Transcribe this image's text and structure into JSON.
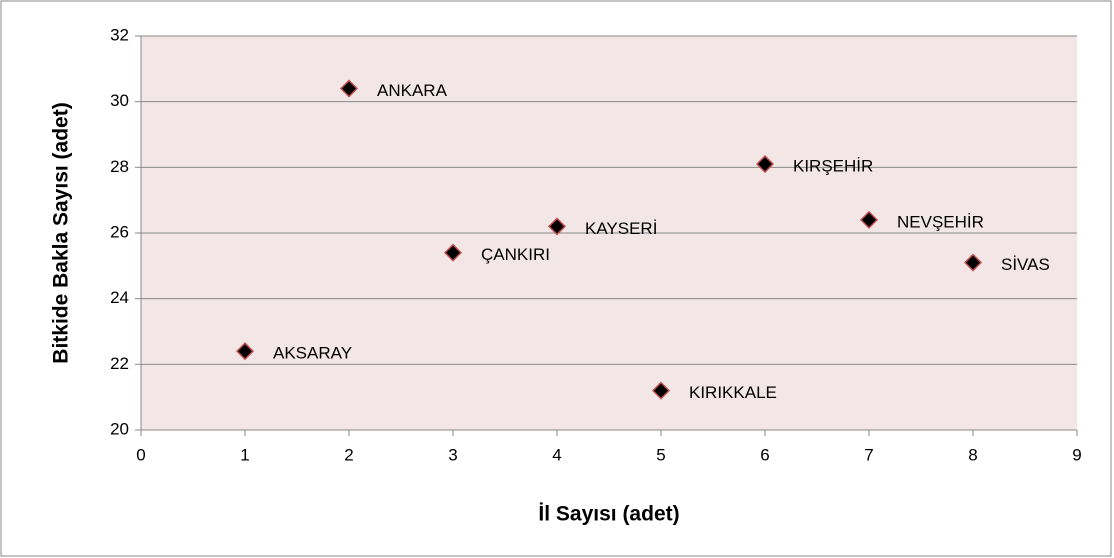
{
  "chart_data": {
    "type": "scatter",
    "x_label": "İl Sayısı (adet)",
    "y_label": "Bitkide Bakla Sayısı (adet)",
    "x": [
      1,
      2,
      3,
      4,
      5,
      6,
      7,
      8
    ],
    "values": [
      22.4,
      30.4,
      25.4,
      26.2,
      21.2,
      28.1,
      26.4,
      25.1
    ],
    "labels": [
      "AKSARAY",
      "ANKARA",
      "ÇANKIRI",
      "KAYSERİ",
      "KIRIKKALE",
      "KIRŞEHİR",
      "NEVŞEHİR",
      "SİVAS"
    ],
    "color": "#000000",
    "edge_color": "#c0504d",
    "plot_background": "#f2e6e6",
    "xlim": [
      0,
      9
    ],
    "xticks": [
      0,
      1,
      2,
      3,
      4,
      5,
      6,
      7,
      8,
      9
    ],
    "ylim": [
      20,
      32
    ],
    "yticks": [
      20,
      22,
      24,
      26,
      28,
      30,
      32
    ],
    "grid": true
  }
}
